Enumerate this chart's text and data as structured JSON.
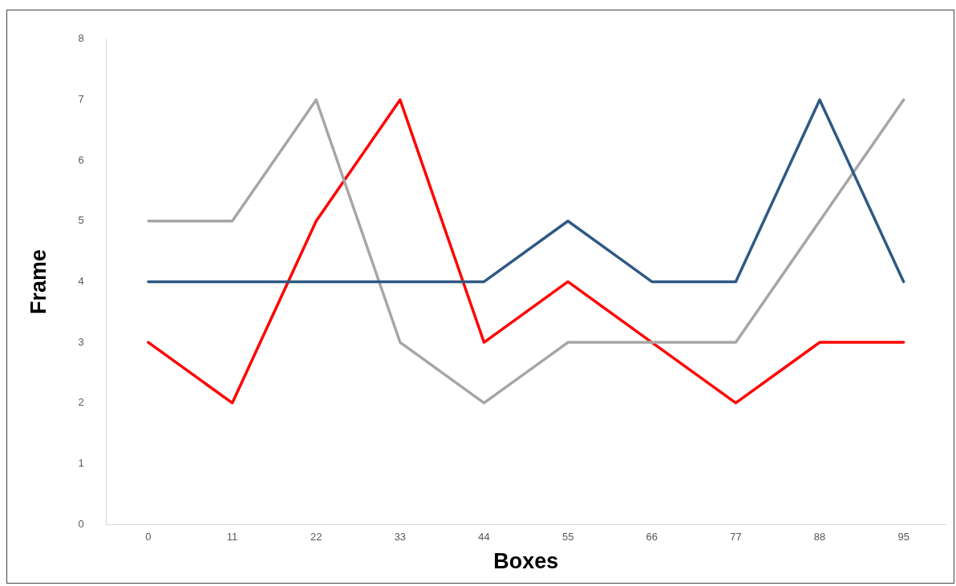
{
  "chart_data": {
    "type": "line",
    "xlabel": "Boxes",
    "ylabel": "Frame",
    "categories": [
      "0",
      "11",
      "22",
      "33",
      "44",
      "55",
      "66",
      "77",
      "88",
      "95"
    ],
    "series": [
      {
        "color": "#2f5983",
        "values": [
          4,
          4,
          4,
          4,
          4,
          5,
          4,
          4,
          7,
          4
        ]
      },
      {
        "color": "#a6a6a6",
        "values": [
          5,
          5,
          7,
          3,
          2,
          3,
          3,
          3,
          5,
          7
        ]
      },
      {
        "color": "#ff0000",
        "values": [
          3,
          2,
          5,
          7,
          3,
          4,
          3,
          2,
          3,
          3
        ]
      }
    ],
    "ylim": [
      0,
      8
    ],
    "yticks": [
      0,
      1,
      2,
      3,
      4,
      5,
      6,
      7,
      8
    ],
    "grid": false,
    "legend": false,
    "marker": "none",
    "line_style": "solid"
  }
}
